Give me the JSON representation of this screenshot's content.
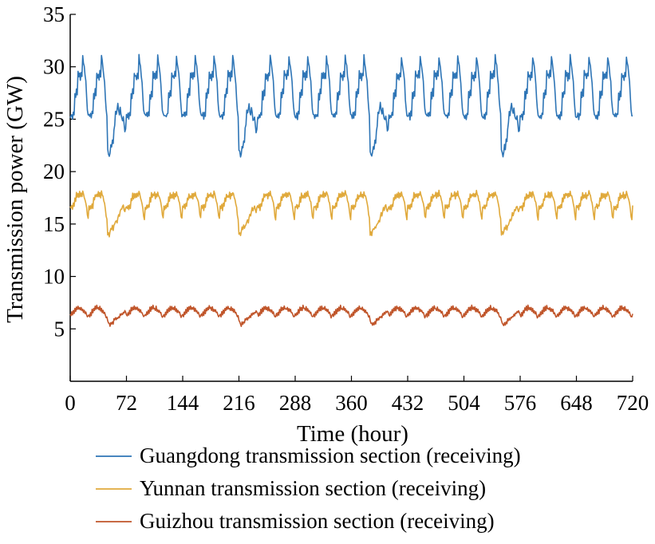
{
  "chart_data": {
    "type": "line",
    "xlabel": "Time (hour)",
    "ylabel": "Transmission power (GW)",
    "xlim": [
      0,
      720
    ],
    "ylim": [
      0,
      35
    ],
    "xticks": [
      0,
      72,
      144,
      216,
      288,
      360,
      432,
      504,
      576,
      648,
      720
    ],
    "yticks": [
      5,
      10,
      15,
      20,
      25,
      30,
      35
    ],
    "grid": false,
    "legend_position": "bottom",
    "series": [
      {
        "name": "Guangdong transmission section (receiving)",
        "color": "#2E75B6",
        "daily_profile_weekday": [
          25.3,
          25.2,
          25.5,
          25.1,
          25.6,
          25.4,
          27.5,
          27.0,
          27.8,
          27.3,
          29.5,
          29.0,
          29.3,
          28.8,
          29.5,
          29.0,
          31.0,
          30.5,
          30.0,
          29.2,
          28.5,
          27.0,
          26.0,
          25.4
        ],
        "daily_profile_weekend": [
          22.0,
          21.8,
          21.5,
          21.8,
          22.5,
          22.2,
          23.0,
          22.8,
          24.0,
          24.5,
          25.8,
          25.5,
          26.0,
          26.5,
          25.8,
          25.5,
          26.0,
          25.5,
          25.0,
          24.8,
          25.2,
          24.5,
          23.8,
          24.0
        ],
        "weekend_days": [
          2,
          9,
          16,
          23
        ]
      },
      {
        "name": "Yunnan transmission section (receiving)",
        "color": "#E0A93B",
        "daily_profile_weekday": [
          16.7,
          16.5,
          16.8,
          16.4,
          16.9,
          16.6,
          17.5,
          17.2,
          17.9,
          17.5,
          17.8,
          17.6,
          18.0,
          17.5,
          17.9,
          17.6,
          18.1,
          17.8,
          17.6,
          17.3,
          17.0,
          16.5,
          15.8,
          15.5
        ],
        "daily_profile_weekend": [
          14.0,
          14.2,
          13.9,
          14.3,
          14.6,
          14.4,
          14.8,
          14.5,
          14.9,
          15.0,
          15.2,
          15.4,
          15.2,
          15.6,
          16.0,
          15.8,
          16.2,
          16.5,
          16.3,
          16.6,
          16.8,
          16.4,
          16.2,
          16.5
        ],
        "weekend_days": [
          2,
          9,
          16,
          23
        ]
      },
      {
        "name": "Guizhou transmission section (receiving)",
        "color": "#C0552A",
        "daily_profile_weekday": [
          6.4,
          6.2,
          6.6,
          6.3,
          6.8,
          6.5,
          7.0,
          6.7,
          7.1,
          6.8,
          7.2,
          6.9,
          7.0,
          6.8,
          7.1,
          6.7,
          6.9,
          6.6,
          6.8,
          6.5,
          6.6,
          6.3,
          6.1,
          6.2
        ],
        "daily_profile_weekend": [
          5.8,
          5.6,
          5.5,
          5.3,
          5.6,
          5.4,
          5.7,
          5.5,
          5.9,
          5.8,
          6.0,
          5.9,
          6.1,
          6.0,
          6.2,
          6.1,
          6.4,
          6.3,
          6.5,
          6.4,
          6.6,
          6.5,
          6.7,
          6.6
        ],
        "weekend_days": [
          2,
          9,
          16,
          23
        ]
      }
    ]
  }
}
